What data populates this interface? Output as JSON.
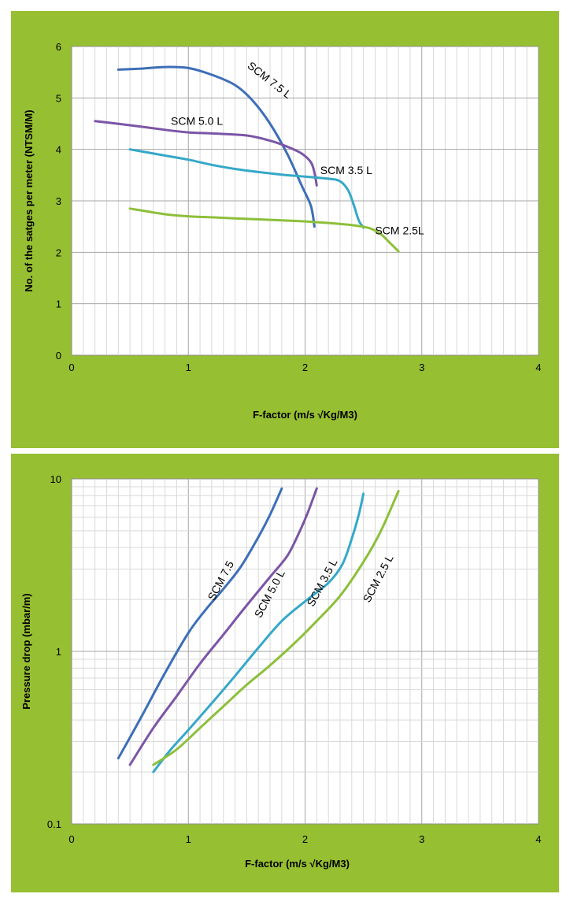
{
  "chart_data": [
    {
      "type": "line",
      "title": "",
      "xlabel": "F-factor (m/s √Kg/M3)",
      "ylabel": "No. of the satges per meter (NTSM/M)",
      "xlim": [
        0,
        4
      ],
      "ylim": [
        0,
        6
      ],
      "xticks": [
        "0",
        "1",
        "2",
        "3",
        "4"
      ],
      "yticks": [
        "0",
        "1",
        "2",
        "3",
        "4",
        "5",
        "6"
      ],
      "grid": true,
      "series": [
        {
          "name": "SCM 7.5 L",
          "color": "#3d6fb8",
          "points": [
            [
              0.4,
              5.55
            ],
            [
              0.6,
              5.57
            ],
            [
              0.8,
              5.6
            ],
            [
              1.0,
              5.58
            ],
            [
              1.2,
              5.45
            ],
            [
              1.4,
              5.25
            ],
            [
              1.55,
              4.95
            ],
            [
              1.7,
              4.5
            ],
            [
              1.85,
              3.9
            ],
            [
              1.97,
              3.3
            ],
            [
              2.05,
              2.9
            ],
            [
              2.08,
              2.5
            ]
          ]
        },
        {
          "name": "SCM 5.0 L",
          "color": "#7b55a6",
          "points": [
            [
              0.2,
              4.55
            ],
            [
              0.5,
              4.47
            ],
            [
              0.8,
              4.38
            ],
            [
              1.0,
              4.33
            ],
            [
              1.2,
              4.31
            ],
            [
              1.5,
              4.27
            ],
            [
              1.7,
              4.17
            ],
            [
              1.85,
              4.05
            ],
            [
              1.97,
              3.92
            ],
            [
              2.05,
              3.75
            ],
            [
              2.08,
              3.55
            ],
            [
              2.1,
              3.3
            ]
          ]
        },
        {
          "name": "SCM 3.5 L",
          "color": "#35a8c8",
          "points": [
            [
              0.5,
              4.0
            ],
            [
              0.8,
              3.88
            ],
            [
              1.0,
              3.8
            ],
            [
              1.2,
              3.7
            ],
            [
              1.4,
              3.62
            ],
            [
              1.6,
              3.56
            ],
            [
              1.8,
              3.51
            ],
            [
              2.0,
              3.47
            ],
            [
              2.2,
              3.43
            ],
            [
              2.3,
              3.38
            ],
            [
              2.37,
              3.2
            ],
            [
              2.42,
              2.9
            ],
            [
              2.46,
              2.62
            ],
            [
              2.5,
              2.48
            ]
          ]
        },
        {
          "name": "SCM 2.5L",
          "color": "#8dbf3a",
          "points": [
            [
              0.5,
              2.85
            ],
            [
              0.8,
              2.74
            ],
            [
              1.0,
              2.7
            ],
            [
              1.2,
              2.68
            ],
            [
              1.5,
              2.65
            ],
            [
              1.8,
              2.62
            ],
            [
              2.0,
              2.6
            ],
            [
              2.2,
              2.57
            ],
            [
              2.4,
              2.53
            ],
            [
              2.55,
              2.47
            ],
            [
              2.65,
              2.35
            ],
            [
              2.72,
              2.2
            ],
            [
              2.8,
              2.02
            ]
          ]
        }
      ]
    },
    {
      "type": "line",
      "title": "",
      "xlabel": "F-factor (m/s √Kg/M3)",
      "ylabel": "Pressure drop (mbar/m)",
      "xlim": [
        0,
        4
      ],
      "ylim": [
        0.1,
        10
      ],
      "yscale": "log",
      "xticks": [
        "0",
        "1",
        "2",
        "3",
        "4"
      ],
      "yticks": [
        "0.1",
        "1",
        "10"
      ],
      "grid": true,
      "series": [
        {
          "name": "SCM 7.5",
          "color": "#3d6fb8",
          "points": [
            [
              0.4,
              0.24
            ],
            [
              0.6,
              0.42
            ],
            [
              0.8,
              0.75
            ],
            [
              1.0,
              1.28
            ],
            [
              1.15,
              1.75
            ],
            [
              1.3,
              2.3
            ],
            [
              1.45,
              3.1
            ],
            [
              1.6,
              4.6
            ],
            [
              1.7,
              6.2
            ],
            [
              1.8,
              8.8
            ]
          ]
        },
        {
          "name": "SCM 5.0 L",
          "color": "#7b55a6",
          "points": [
            [
              0.5,
              0.22
            ],
            [
              0.7,
              0.36
            ],
            [
              0.9,
              0.55
            ],
            [
              1.1,
              0.85
            ],
            [
              1.3,
              1.25
            ],
            [
              1.5,
              1.85
            ],
            [
              1.7,
              2.7
            ],
            [
              1.85,
              3.6
            ],
            [
              1.95,
              4.9
            ],
            [
              2.02,
              6.3
            ],
            [
              2.1,
              8.8
            ]
          ]
        },
        {
          "name": "SCM 3.5 L",
          "color": "#35a8c8",
          "points": [
            [
              0.7,
              0.2
            ],
            [
              0.85,
              0.27
            ],
            [
              1.0,
              0.35
            ],
            [
              1.2,
              0.5
            ],
            [
              1.4,
              0.72
            ],
            [
              1.6,
              1.05
            ],
            [
              1.8,
              1.5
            ],
            [
              2.0,
              1.95
            ],
            [
              2.2,
              2.5
            ],
            [
              2.32,
              3.2
            ],
            [
              2.4,
              4.5
            ],
            [
              2.46,
              6.2
            ],
            [
              2.5,
              8.2
            ]
          ]
        },
        {
          "name": "SCM 2.5 L",
          "color": "#8dbf3a",
          "points": [
            [
              0.7,
              0.22
            ],
            [
              0.9,
              0.27
            ],
            [
              1.1,
              0.36
            ],
            [
              1.3,
              0.48
            ],
            [
              1.5,
              0.64
            ],
            [
              1.7,
              0.83
            ],
            [
              1.9,
              1.1
            ],
            [
              2.1,
              1.5
            ],
            [
              2.3,
              2.1
            ],
            [
              2.5,
              3.3
            ],
            [
              2.65,
              5.0
            ],
            [
              2.8,
              8.5
            ]
          ]
        }
      ]
    }
  ]
}
